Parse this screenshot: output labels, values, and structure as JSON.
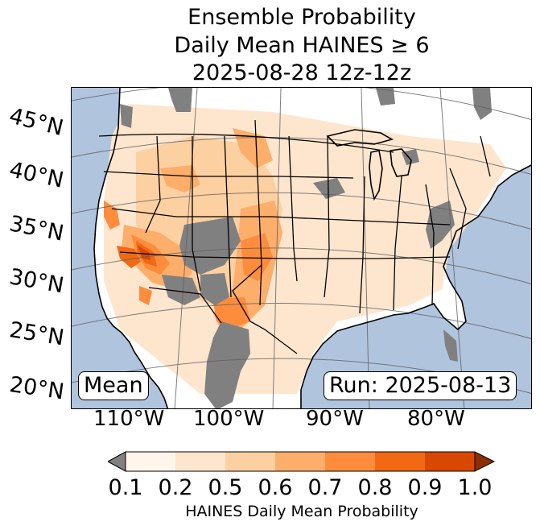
{
  "title": {
    "line1": "Ensemble Probability",
    "line2": "Daily Mean HAINES ≥ 6",
    "line3": "2025-08-28 12z-12z"
  },
  "map": {
    "region": "Continental United States",
    "latitude_labels": [
      "45°N",
      "40°N",
      "35°N",
      "30°N",
      "25°N",
      "20°N"
    ],
    "longitude_labels": [
      "110°W",
      "100°W",
      "90°W",
      "80°W"
    ],
    "colors": {
      "ocean": "#b0c4de",
      "no_data_gray": "#808080",
      "land": "#ffffff",
      "grid": "#606060",
      "border": "#000000"
    },
    "stat_label": "Mean",
    "run_label": "Run: 2025-08-13"
  },
  "colorbar": {
    "tick_labels": [
      "0.1",
      "0.2",
      "0.5",
      "0.6",
      "0.7",
      "0.8",
      "0.9",
      "1.0"
    ],
    "bins": [
      {
        "range": "<0.1",
        "color": "#808080"
      },
      {
        "range": "0.1-0.2",
        "color": "#fff5eb"
      },
      {
        "range": "0.2-0.5",
        "color": "#fee6ce"
      },
      {
        "range": "0.5-0.6",
        "color": "#fdd0a2"
      },
      {
        "range": "0.6-0.7",
        "color": "#fdae6b"
      },
      {
        "range": "0.7-0.8",
        "color": "#fd8d3c"
      },
      {
        "range": "0.8-0.9",
        "color": "#f16913"
      },
      {
        "range": "0.9-1.0",
        "color": "#d94801"
      },
      {
        "range": ">1.0",
        "color": "#8c2d04"
      }
    ],
    "label": "HAINES Daily Mean Probability"
  }
}
